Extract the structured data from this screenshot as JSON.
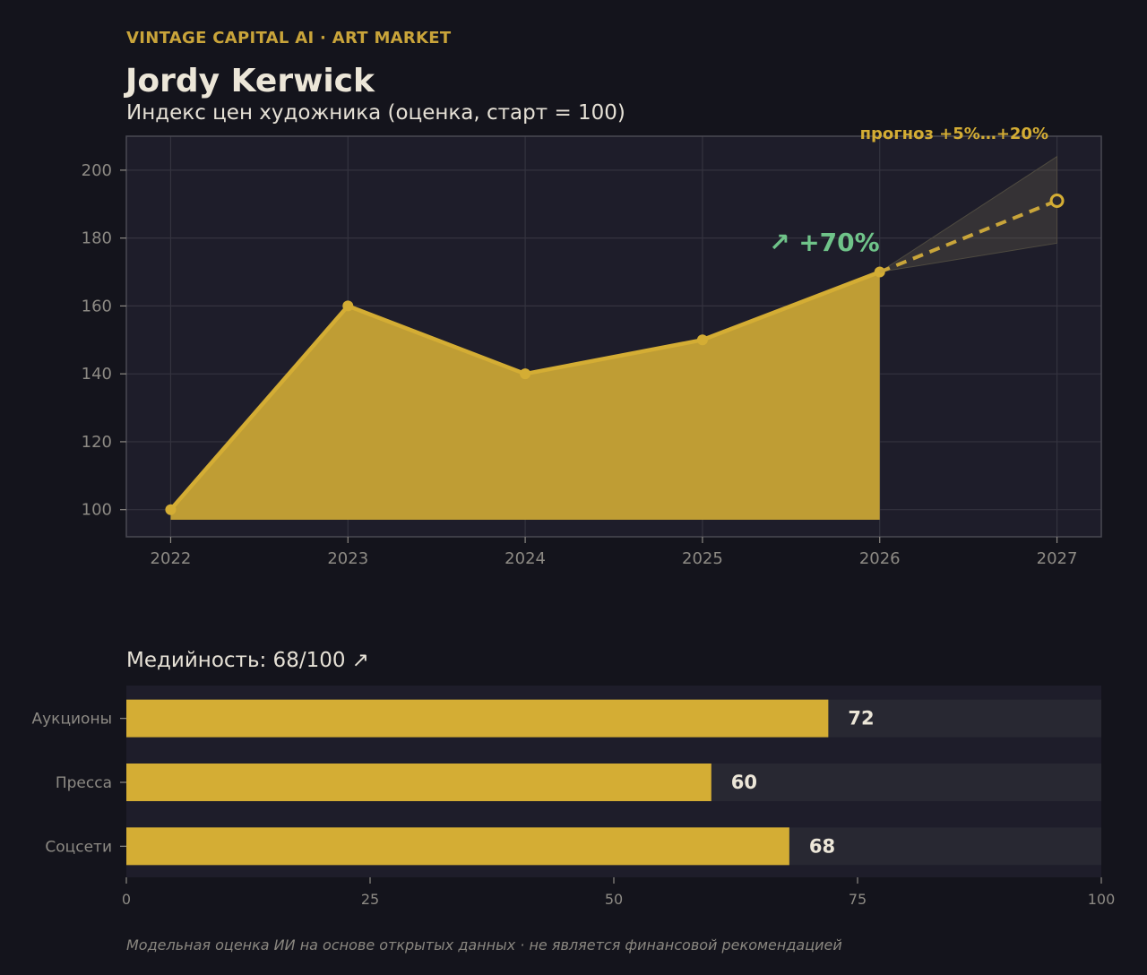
{
  "header": {
    "brand": "VINTAGE CAPITAL AI · ART MARKET",
    "artist": "Jordy Kerwick",
    "subtitle": "Индекс цен художника (оценка, старт = 100)"
  },
  "colors": {
    "accent": "#d4ad34",
    "growth": "#6fc389",
    "background": "#14141c",
    "panel": "#1e1d2a"
  },
  "chart_data": [
    {
      "type": "area",
      "title": "Индекс цен художника (оценка, старт = 100)",
      "x": [
        2022,
        2023,
        2024,
        2025,
        2026
      ],
      "values": [
        100,
        160,
        140,
        150,
        170
      ],
      "forecast": {
        "x": [
          2026,
          2027
        ],
        "values": [
          170,
          191
        ],
        "band_low": [
          170,
          178.5
        ],
        "band_high": [
          170,
          204
        ],
        "label": "прогноз +5%…+20%"
      },
      "growth_label": "↗ +70%",
      "xlim": [
        2021.75,
        2027.25
      ],
      "ylim": [
        92,
        210
      ],
      "yticks": [
        100,
        120,
        140,
        160,
        180,
        200
      ],
      "xticks": [
        2022,
        2023,
        2024,
        2025,
        2026,
        2027
      ],
      "grid": true
    },
    {
      "type": "bar",
      "orientation": "horizontal",
      "title": "Медийность: 68/100 ↗",
      "categories": [
        "Аукционы",
        "Пресса",
        "Соцсети"
      ],
      "values": [
        72,
        60,
        68
      ],
      "xlim": [
        0,
        100
      ],
      "xticks": [
        0,
        25,
        50,
        75,
        100
      ]
    }
  ],
  "footnote": "Модельная оценка ИИ на основе открытых данных · не является финансовой рекомендацией"
}
